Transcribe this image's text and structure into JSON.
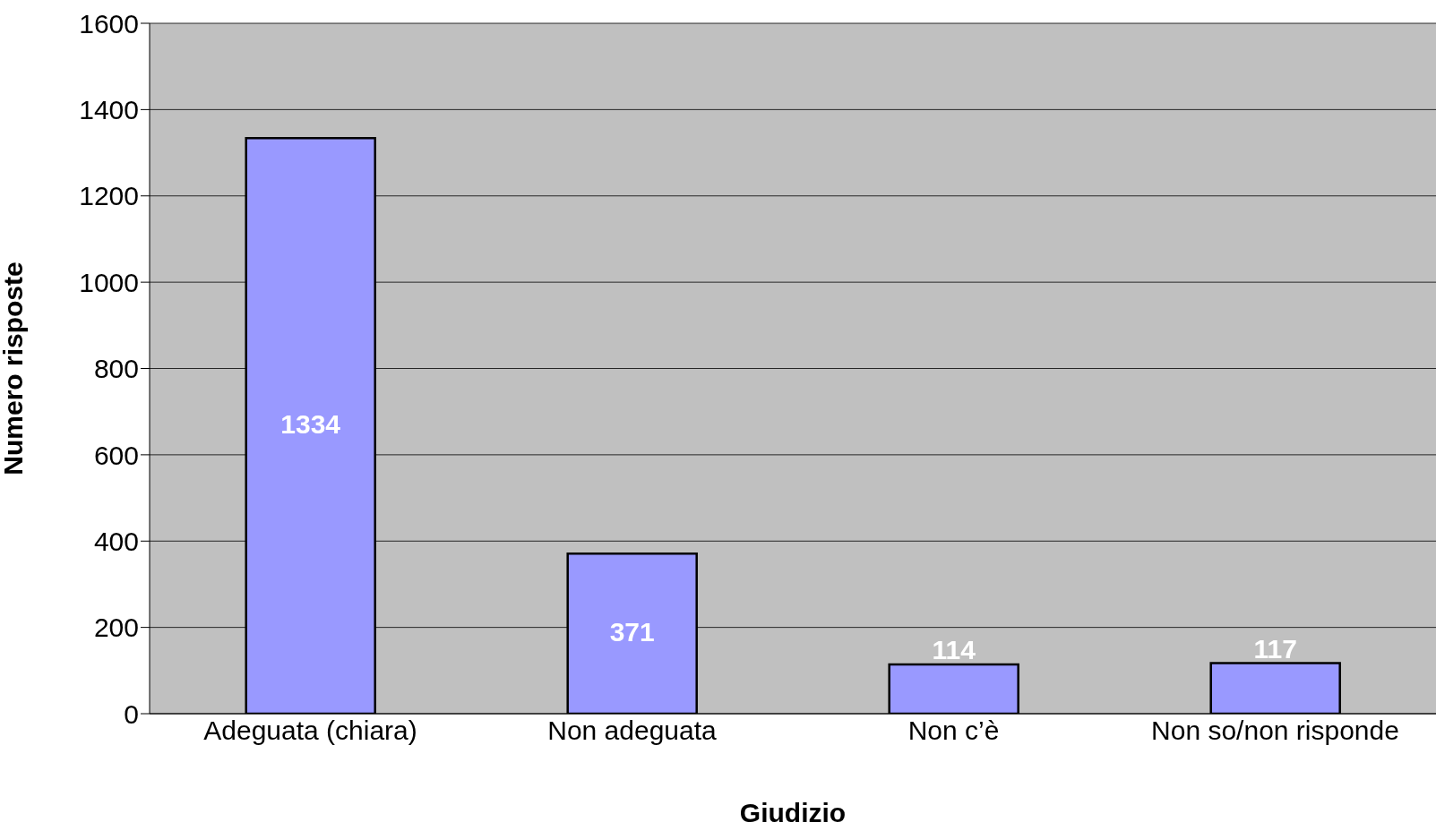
{
  "chart_data": {
    "type": "bar",
    "xlabel": "Giudizio",
    "ylabel": "Numero risposte",
    "categories": [
      "Adeguata (chiara)",
      "Non adeguata",
      "Non c’è",
      "Non so/non risponde"
    ],
    "values": [
      1334,
      371,
      114,
      117
    ],
    "color": "#9999ff",
    "ylim": [
      0,
      1600
    ],
    "yticks": [
      0,
      200,
      400,
      600,
      800,
      1000,
      1200,
      1400,
      1600
    ],
    "grid": "y",
    "data_labels": true
  }
}
